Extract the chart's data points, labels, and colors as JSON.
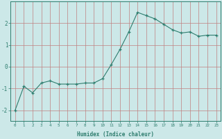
{
  "x": [
    0,
    1,
    2,
    3,
    4,
    5,
    6,
    7,
    8,
    9,
    10,
    11,
    12,
    13,
    14,
    15,
    16,
    17,
    18,
    19,
    20,
    21,
    22,
    23
  ],
  "y": [
    -2.0,
    -0.9,
    -1.2,
    -0.75,
    -0.65,
    -0.8,
    -0.8,
    -0.8,
    -0.75,
    -0.75,
    -0.55,
    0.1,
    0.8,
    1.6,
    2.5,
    2.35,
    2.2,
    1.95,
    1.7,
    1.55,
    1.6,
    1.4,
    1.45,
    1.45
  ],
  "line_color": "#2e7d6e",
  "marker": "+",
  "marker_color": "#2e7d6e",
  "bg_color": "#cce8e8",
  "grid_color": "#c08080",
  "axis_color": "#2e7d6e",
  "xlabel": "Humidex (Indice chaleur)",
  "ylim": [
    -2.5,
    3.0
  ],
  "xlim": [
    -0.5,
    23.5
  ],
  "yticks": [
    -2,
    -1,
    0,
    1,
    2
  ],
  "xticks": [
    0,
    1,
    2,
    3,
    4,
    5,
    6,
    7,
    8,
    9,
    10,
    11,
    12,
    13,
    14,
    15,
    16,
    17,
    18,
    19,
    20,
    21,
    22,
    23
  ],
  "figsize": [
    3.2,
    2.0
  ],
  "dpi": 100
}
